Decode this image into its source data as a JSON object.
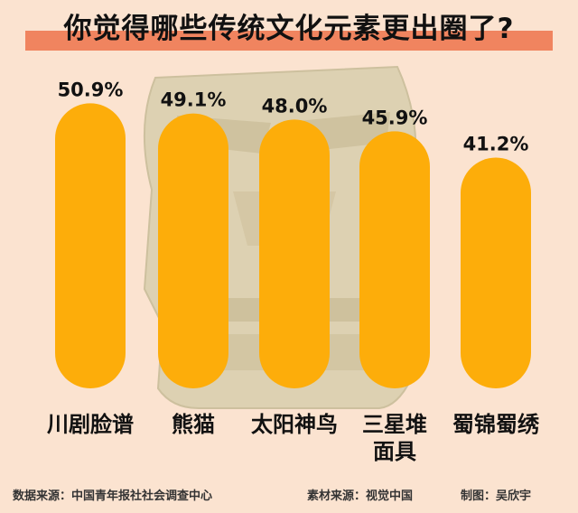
{
  "header": {
    "title": "你觉得哪些传统文化元素更出圈了?"
  },
  "chart_data": {
    "type": "bar",
    "title": "你觉得哪些传统文化元素更出圈了?",
    "categories": [
      "川剧脸谱",
      "熊猫",
      "太阳神鸟",
      "三星堆面具",
      "蜀锦蜀绣"
    ],
    "category_lines": [
      [
        "川剧脸谱"
      ],
      [
        "熊猫"
      ],
      [
        "太阳神鸟"
      ],
      [
        "三星堆",
        "面具"
      ],
      [
        "蜀锦蜀绣"
      ]
    ],
    "values": [
      50.9,
      49.1,
      48.0,
      45.9,
      41.2
    ],
    "value_labels": [
      "50.9%",
      "49.1%",
      "48.0%",
      "45.9%",
      "41.2%"
    ],
    "unit": "%",
    "ylim": [
      0,
      60
    ],
    "grid": false,
    "legend": "none"
  },
  "footer": {
    "source": "数据来源：中国青年报社社会调查中心",
    "material": "素材来源：视觉中国",
    "author": "制图：吴欣宇"
  },
  "colors": {
    "background": "#fbe3d0",
    "bar": "#fdad0a",
    "title_band": "#f0845f",
    "text": "#111111",
    "mask": "#d6cca8"
  }
}
